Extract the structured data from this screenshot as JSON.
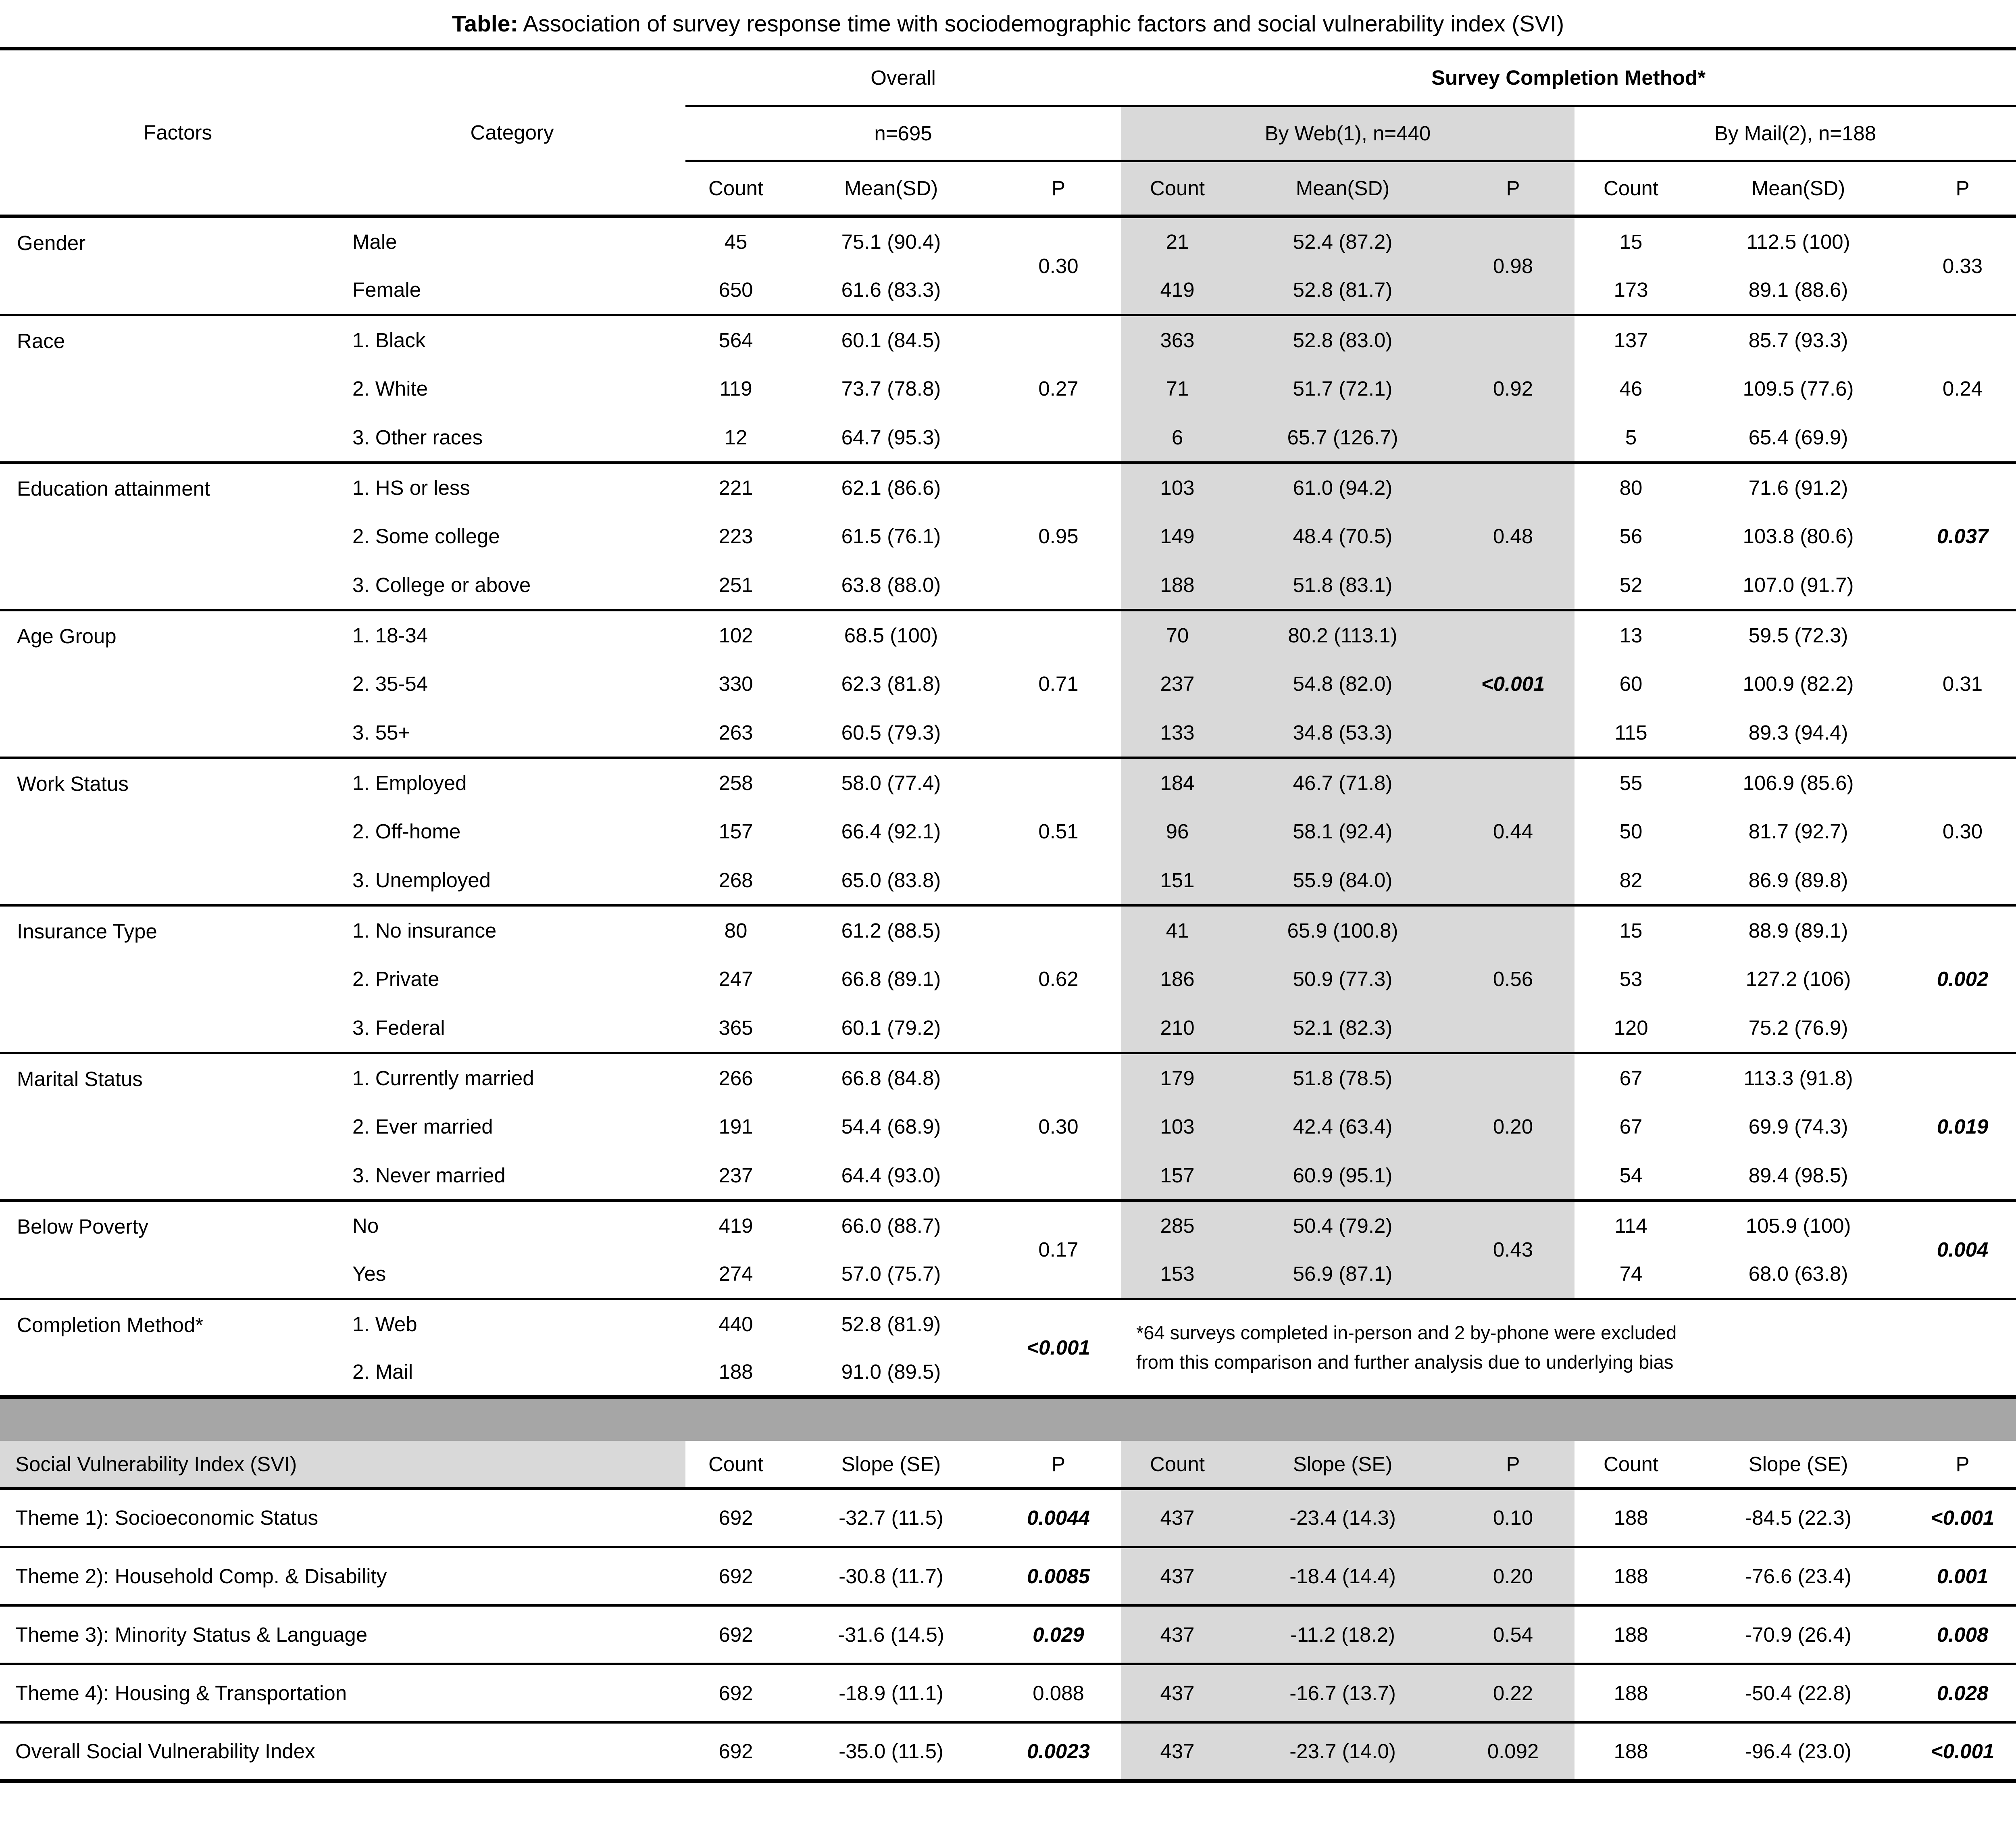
{
  "title": {
    "label": "Table:",
    "text": "Association of survey response time with sociodemographic factors and social vulnerability index (SVI)"
  },
  "header": {
    "factors": "Factors",
    "category": "Category",
    "overall": "Overall",
    "overall_n": "n=695",
    "scm": "Survey Completion Method*",
    "web_n": "By Web(1), n=440",
    "mail_n": "By Mail(2), n=188",
    "count": "Count",
    "mean_sd": "Mean(SD)",
    "p": "P"
  },
  "colors": {
    "web_shade": "#d9d9d9",
    "separator_band": "#a6a6a6",
    "svi_label_shade": "#d9d9d9",
    "rule": "#000000"
  },
  "factors": [
    {
      "name": "Gender",
      "rows": [
        {
          "category": "Male",
          "o_count": "45",
          "o_mean": "75.1 (90.4)",
          "w_count": "21",
          "w_mean": "52.4 (87.2)",
          "m_count": "15",
          "m_mean": "112.5 (100)"
        },
        {
          "category": "Female",
          "o_count": "650",
          "o_mean": "61.6 (83.3)",
          "w_count": "419",
          "w_mean": "52.8 (81.7)",
          "m_count": "173",
          "m_mean": "89.1 (88.6)"
        }
      ],
      "o_p": {
        "text": "0.30",
        "bold": false
      },
      "w_p": {
        "text": "0.98",
        "bold": false
      },
      "m_p": {
        "text": "0.33",
        "bold": false
      }
    },
    {
      "name": "Race",
      "rows": [
        {
          "category": "1. Black",
          "o_count": "564",
          "o_mean": "60.1 (84.5)",
          "w_count": "363",
          "w_mean": "52.8 (83.0)",
          "m_count": "137",
          "m_mean": "85.7 (93.3)"
        },
        {
          "category": "2. White",
          "o_count": "119",
          "o_mean": "73.7 (78.8)",
          "w_count": "71",
          "w_mean": "51.7 (72.1)",
          "m_count": "46",
          "m_mean": "109.5 (77.6)"
        },
        {
          "category": "3. Other races",
          "o_count": "12",
          "o_mean": "64.7 (95.3)",
          "w_count": "6",
          "w_mean": "65.7 (126.7)",
          "m_count": "5",
          "m_mean": "65.4 (69.9)"
        }
      ],
      "o_p": {
        "text": "0.27",
        "bold": false
      },
      "w_p": {
        "text": "0.92",
        "bold": false
      },
      "m_p": {
        "text": "0.24",
        "bold": false
      }
    },
    {
      "name": "Education attainment",
      "rows": [
        {
          "category": "1. HS or less",
          "o_count": "221",
          "o_mean": "62.1 (86.6)",
          "w_count": "103",
          "w_mean": "61.0 (94.2)",
          "m_count": "80",
          "m_mean": "71.6 (91.2)"
        },
        {
          "category": "2. Some college",
          "o_count": "223",
          "o_mean": "61.5 (76.1)",
          "w_count": "149",
          "w_mean": "48.4 (70.5)",
          "m_count": "56",
          "m_mean": "103.8 (80.6)"
        },
        {
          "category": "3. College or above",
          "o_count": "251",
          "o_mean": "63.8 (88.0)",
          "w_count": "188",
          "w_mean": "51.8 (83.1)",
          "m_count": "52",
          "m_mean": "107.0 (91.7)"
        }
      ],
      "o_p": {
        "text": "0.95",
        "bold": false
      },
      "w_p": {
        "text": "0.48",
        "bold": false
      },
      "m_p": {
        "text": "0.037",
        "bold": true
      }
    },
    {
      "name": "Age Group",
      "rows": [
        {
          "category": "1. 18-34",
          "o_count": "102",
          "o_mean": "68.5 (100)",
          "w_count": "70",
          "w_mean": "80.2 (113.1)",
          "m_count": "13",
          "m_mean": "59.5 (72.3)"
        },
        {
          "category": "2. 35-54",
          "o_count": "330",
          "o_mean": "62.3 (81.8)",
          "w_count": "237",
          "w_mean": "54.8 (82.0)",
          "m_count": "60",
          "m_mean": "100.9 (82.2)"
        },
        {
          "category": "3. 55+",
          "o_count": "263",
          "o_mean": "60.5 (79.3)",
          "w_count": "133",
          "w_mean": "34.8 (53.3)",
          "m_count": "115",
          "m_mean": "89.3 (94.4)"
        }
      ],
      "o_p": {
        "text": "0.71",
        "bold": false
      },
      "w_p": {
        "text": "<0.001",
        "bold": true
      },
      "m_p": {
        "text": "0.31",
        "bold": false
      }
    },
    {
      "name": "Work Status",
      "rows": [
        {
          "category": "1. Employed",
          "o_count": "258",
          "o_mean": "58.0 (77.4)",
          "w_count": "184",
          "w_mean": "46.7 (71.8)",
          "m_count": "55",
          "m_mean": "106.9 (85.6)"
        },
        {
          "category": "2. Off-home",
          "o_count": "157",
          "o_mean": "66.4 (92.1)",
          "w_count": "96",
          "w_mean": "58.1 (92.4)",
          "m_count": "50",
          "m_mean": "81.7 (92.7)"
        },
        {
          "category": "3. Unemployed",
          "o_count": "268",
          "o_mean": "65.0 (83.8)",
          "w_count": "151",
          "w_mean": "55.9 (84.0)",
          "m_count": "82",
          "m_mean": "86.9 (89.8)"
        }
      ],
      "o_p": {
        "text": "0.51",
        "bold": false
      },
      "w_p": {
        "text": "0.44",
        "bold": false
      },
      "m_p": {
        "text": "0.30",
        "bold": false
      }
    },
    {
      "name": "Insurance Type",
      "rows": [
        {
          "category": "1. No insurance",
          "o_count": "80",
          "o_mean": "61.2 (88.5)",
          "w_count": "41",
          "w_mean": "65.9 (100.8)",
          "m_count": "15",
          "m_mean": "88.9 (89.1)"
        },
        {
          "category": "2. Private",
          "o_count": "247",
          "o_mean": "66.8 (89.1)",
          "w_count": "186",
          "w_mean": "50.9 (77.3)",
          "m_count": "53",
          "m_mean": "127.2 (106)"
        },
        {
          "category": "3. Federal",
          "o_count": "365",
          "o_mean": "60.1 (79.2)",
          "w_count": "210",
          "w_mean": "52.1 (82.3)",
          "m_count": "120",
          "m_mean": "75.2 (76.9)"
        }
      ],
      "o_p": {
        "text": "0.62",
        "bold": false
      },
      "w_p": {
        "text": "0.56",
        "bold": false
      },
      "m_p": {
        "text": "0.002",
        "bold": true
      }
    },
    {
      "name": "Marital Status",
      "rows": [
        {
          "category": "1. Currently married",
          "o_count": "266",
          "o_mean": "66.8 (84.8)",
          "w_count": "179",
          "w_mean": "51.8 (78.5)",
          "m_count": "67",
          "m_mean": "113.3 (91.8)"
        },
        {
          "category": "2. Ever married",
          "o_count": "191",
          "o_mean": "54.4 (68.9)",
          "w_count": "103",
          "w_mean": "42.4 (63.4)",
          "m_count": "67",
          "m_mean": "69.9 (74.3)"
        },
        {
          "category": "3. Never married",
          "o_count": "237",
          "o_mean": "64.4 (93.0)",
          "w_count": "157",
          "w_mean": "60.9 (95.1)",
          "m_count": "54",
          "m_mean": "89.4 (98.5)"
        }
      ],
      "o_p": {
        "text": "0.30",
        "bold": false
      },
      "w_p": {
        "text": "0.20",
        "bold": false
      },
      "m_p": {
        "text": "0.019",
        "bold": true
      }
    },
    {
      "name": "Below Poverty",
      "rows": [
        {
          "category": "No",
          "o_count": "419",
          "o_mean": "66.0 (88.7)",
          "w_count": "285",
          "w_mean": "50.4 (79.2)",
          "m_count": "114",
          "m_mean": "105.9 (100)"
        },
        {
          "category": "Yes",
          "o_count": "274",
          "o_mean": "57.0 (75.7)",
          "w_count": "153",
          "w_mean": "56.9 (87.1)",
          "m_count": "74",
          "m_mean": "68.0 (63.8)"
        }
      ],
      "o_p": {
        "text": "0.17",
        "bold": false
      },
      "w_p": {
        "text": "0.43",
        "bold": false
      },
      "m_p": {
        "text": "0.004",
        "bold": true
      }
    },
    {
      "name": "Completion Method*",
      "rows": [
        {
          "category": "1. Web",
          "o_count": "440",
          "o_mean": "52.8 (81.9)"
        },
        {
          "category": "2. Mail",
          "o_count": "188",
          "o_mean": "91.0 (89.5)"
        }
      ],
      "o_p": {
        "text": "<0.001",
        "bold": true
      },
      "footnote_lines": [
        "*64 surveys completed in-person and 2 by-phone were excluded",
        "from this comparison and further analysis due to underlying bias"
      ]
    }
  ],
  "svi": {
    "label": "Social Vulnerability Index (SVI)",
    "count": "Count",
    "slope": "Slope (SE)",
    "p": "P",
    "rows": [
      {
        "label": "Theme 1): Socioeconomic Status",
        "o_count": "692",
        "o_slope": "-32.7 (11.5)",
        "o_p": {
          "text": "0.0044",
          "bold": true
        },
        "w_count": "437",
        "w_slope": "-23.4 (14.3)",
        "w_p": {
          "text": "0.10",
          "bold": false
        },
        "m_count": "188",
        "m_slope": "-84.5 (22.3)",
        "m_p": {
          "text": "<0.001",
          "bold": true
        }
      },
      {
        "label": "Theme 2): Household Comp. & Disability",
        "o_count": "692",
        "o_slope": "-30.8 (11.7)",
        "o_p": {
          "text": "0.0085",
          "bold": true
        },
        "w_count": "437",
        "w_slope": "-18.4 (14.4)",
        "w_p": {
          "text": "0.20",
          "bold": false
        },
        "m_count": "188",
        "m_slope": "-76.6 (23.4)",
        "m_p": {
          "text": "0.001",
          "bold": true
        }
      },
      {
        "label": "Theme 3): Minority Status & Language",
        "o_count": "692",
        "o_slope": "-31.6 (14.5)",
        "o_p": {
          "text": "0.029",
          "bold": true
        },
        "w_count": "437",
        "w_slope": "-11.2 (18.2)",
        "w_p": {
          "text": "0.54",
          "bold": false
        },
        "m_count": "188",
        "m_slope": "-70.9 (26.4)",
        "m_p": {
          "text": "0.008",
          "bold": true
        }
      },
      {
        "label": "Theme 4): Housing & Transportation",
        "o_count": "692",
        "o_slope": "-18.9 (11.1)",
        "o_p": {
          "text": "0.088",
          "bold": false
        },
        "w_count": "437",
        "w_slope": "-16.7 (13.7)",
        "w_p": {
          "text": "0.22",
          "bold": false
        },
        "m_count": "188",
        "m_slope": "-50.4 (22.8)",
        "m_p": {
          "text": "0.028",
          "bold": true
        }
      },
      {
        "label": "Overall Social Vulnerability Index",
        "o_count": "692",
        "o_slope": "-35.0 (11.5)",
        "o_p": {
          "text": "0.0023",
          "bold": true
        },
        "w_count": "437",
        "w_slope": "-23.7 (14.0)",
        "w_p": {
          "text": "0.092",
          "bold": false
        },
        "m_count": "188",
        "m_slope": "-96.4 (23.0)",
        "m_p": {
          "text": "<0.001",
          "bold": true
        }
      }
    ]
  }
}
